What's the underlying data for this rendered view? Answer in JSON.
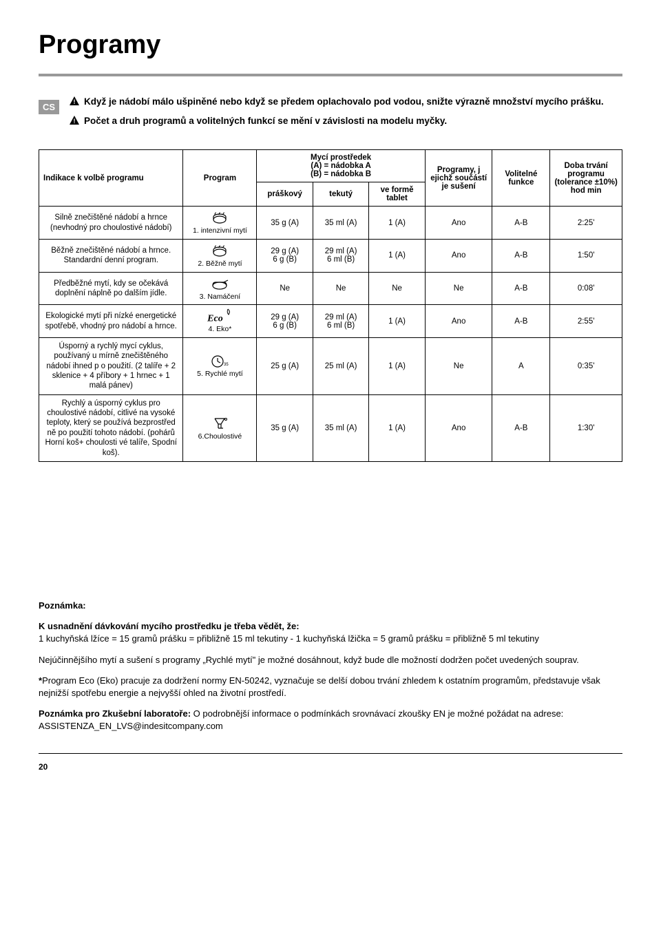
{
  "cs_badge": "CS",
  "title": "Programy",
  "intro": {
    "line1": "Když je nádobí málo ušpiněné nebo když se předem oplachovalo pod vodou, snižte výrazně množství mycího prášku.",
    "line2": "Počet a druh programů a volitelných funkcí se mění v závislosti na modelu myčky."
  },
  "headers": {
    "indication": "Indikace k volbě programu",
    "program": "Program",
    "detergent_title": "Mycí prostředek\n(A) = nádobka A\n(B) = nádobka B",
    "det_powder": "práškový",
    "det_liquid": "tekutý",
    "det_tablet": "ve formě tablet",
    "drying": "Programy, j ejichž součástí je sušení",
    "options": "Volitelné funkce",
    "duration": "Doba trvání programu (tolerance ±10%) hod min"
  },
  "rows": [
    {
      "indication": "Silně znečištěné nádobí a hrnce (nevhodný pro choulostivé nádobí)",
      "program": "1. intenzivní mytí",
      "icon": "pot",
      "powder": "35 g (A)",
      "liquid": "35 ml (A)",
      "tablet": "1 (A)",
      "dry": "Ano",
      "opt": "A-B",
      "time": "2:25'"
    },
    {
      "indication": "Běžně znečištěné nádobí a hrnce. Standardní denní program.",
      "program": "2. Běžně mytí",
      "icon": "pot",
      "powder": "29 g (A)\n6 g (B)",
      "liquid": "29 ml (A)\n6 ml (B)",
      "tablet": "1 (A)",
      "dry": "Ano",
      "opt": "A-B",
      "time": "1:50'"
    },
    {
      "indication": "Předběžné mytí, kdy se očekává doplnění náplně po dalším jídle.",
      "program": "3. Namáčení",
      "icon": "hand",
      "powder": "Ne",
      "liquid": "Ne",
      "tablet": "Ne",
      "dry": "Ne",
      "opt": "A-B",
      "time": "0:08'"
    },
    {
      "indication": "Ekologické mytí při nízké energetické spotřebě, vhodný pro nádobí a hrnce.",
      "program": "4. Eko*",
      "icon": "eco",
      "powder": "29 g (A)\n6 g (B)",
      "liquid": "29 ml (A)\n6 ml (B)",
      "tablet": "1 (A)",
      "dry": "Ano",
      "opt": "A-B",
      "time": "2:55'"
    },
    {
      "indication": "Úsporný a rychlý mycí cyklus, používaný u mírně znečištěného nádobí ihned p o použití. (2 talíře + 2 sklenice + 4 příbory + 1 hrnec + 1 malá pánev)",
      "program": "5. Rychlé mytí",
      "icon": "clock35",
      "powder": "25 g (A)",
      "liquid": "25 ml (A)",
      "tablet": "1 (A)",
      "dry": "Ne",
      "opt": "A",
      "time": "0:35'"
    },
    {
      "indication": "Rychlý a úsporný cyklus pro choulostivé nádobí, citlivé na vysoké teploty, který se používá bezprostřed ně po použití tohoto nádobí. (pohárů Horní koš+ choulosti vé talíře, Spodní koš).",
      "program": "6.Choulostivé",
      "icon": "glass",
      "powder": "35 g (A)",
      "liquid": "35 ml (A)",
      "tablet": "1 (A)",
      "dry": "Ano",
      "opt": "A-B",
      "time": "1:30'"
    }
  ],
  "notes": {
    "heading": "Poznámka:",
    "dose_title": "K usnadnění dávkování mycího prostředku je třeba vědět, že:",
    "dose_text": "1 kuchyňská lžíce = 15 gramů prášku = přibližně 15 ml tekutiny - 1 kuchyňská lžička = 5 gramů prášku = přibližně 5 ml tekutiny",
    "rychle": "Nejúčinnějšího mytí a sušení s programy „Rychlé mytí\" je možné dosáhnout, když bude dle možností dodržen počet uvedených souprav.",
    "eco_star": "*",
    "eco": "Program Eco (Eko) pracuje za dodržení normy EN-50242, vyznačuje se delší dobou trvání zhledem k ostatním programům, představuje však nejnižší spotřebu energie a nejvyšší ohled na životní prostředí.",
    "lab_bold": "Poznámka pro Zkušební laboratoře:",
    "lab": " O podrobnější informace o podmínkách srovnávací zkoušky EN je možné požádat na adrese: ASSISTENZA_EN_LVS@indesitcompany.com"
  },
  "pageno": "20",
  "colors": {
    "badge_bg": "#999999",
    "rule": "#999999"
  }
}
